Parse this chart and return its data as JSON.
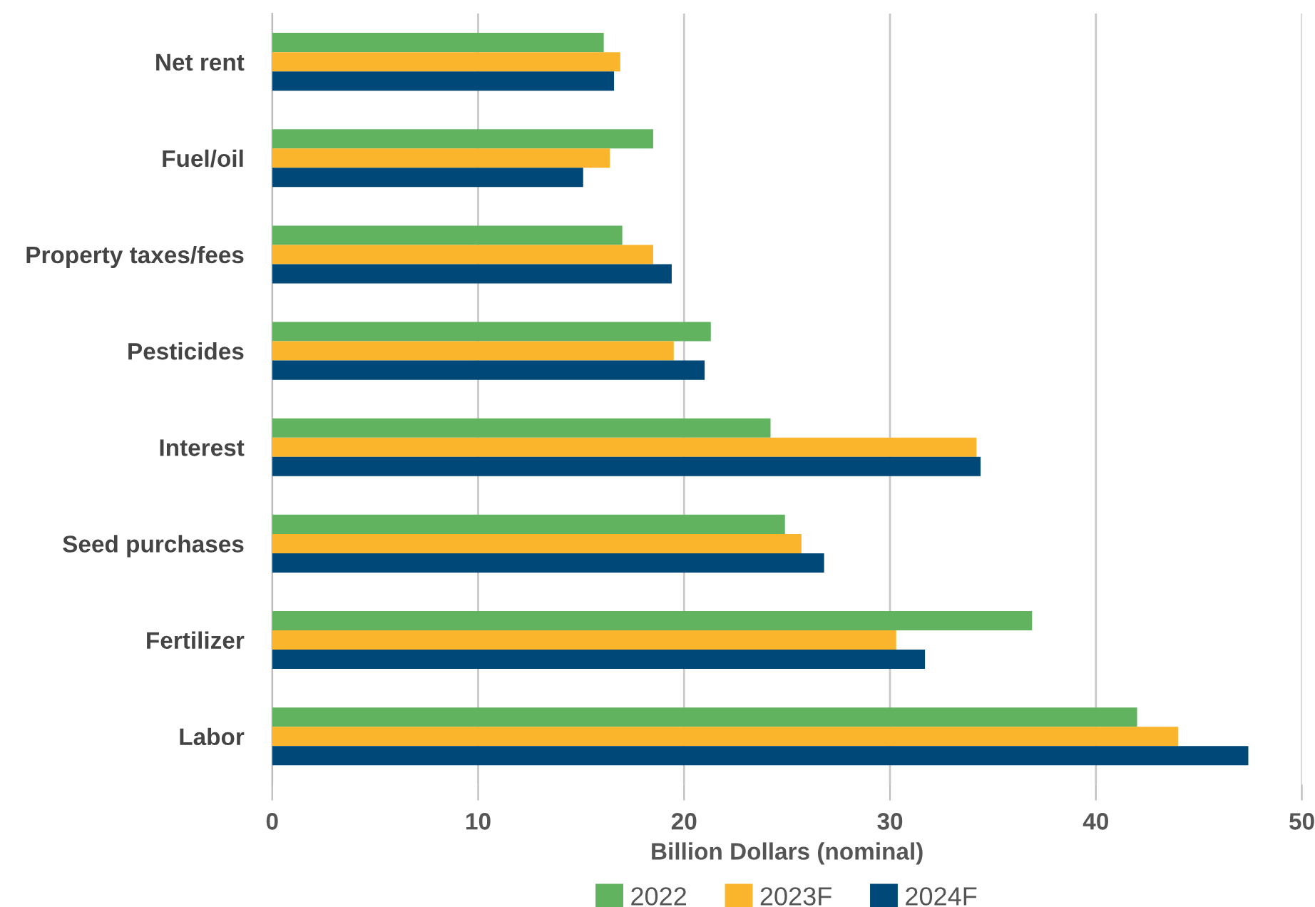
{
  "chart_data": {
    "type": "bar",
    "orientation": "horizontal",
    "xlabel": "Billion Dollars (nominal)",
    "categories": [
      "Net rent",
      "Fuel/oil",
      "Property taxes/fees",
      "Pesticides",
      "Interest",
      "Seed purchases",
      "Fertilizer",
      "Labor"
    ],
    "series": [
      {
        "name": "2022",
        "color": "#62b35f",
        "values": [
          16.1,
          18.5,
          17.0,
          21.3,
          24.2,
          24.9,
          36.9,
          42.0
        ]
      },
      {
        "name": "2023F",
        "color": "#fbb52c",
        "values": [
          16.9,
          16.4,
          18.5,
          19.5,
          34.2,
          25.7,
          30.3,
          44.0
        ]
      },
      {
        "name": "2024F",
        "color": "#004877",
        "values": [
          16.6,
          15.1,
          19.4,
          21.0,
          34.4,
          26.8,
          31.7,
          47.4
        ]
      }
    ],
    "xlim": [
      0,
      50
    ],
    "xticks": [
      0,
      10,
      20,
      30,
      40,
      50
    ],
    "grid": "x",
    "legend": "bottom"
  }
}
